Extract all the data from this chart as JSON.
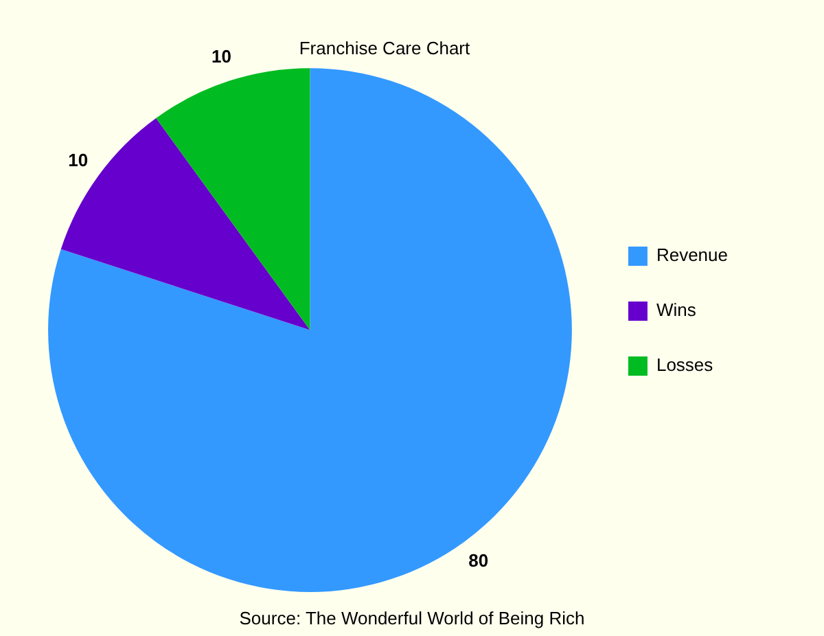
{
  "chart_data": {
    "type": "pie",
    "title": "Franchise Care Chart",
    "categories": [
      "Revenue",
      "Wins",
      "Losses"
    ],
    "values": [
      80,
      10,
      10
    ],
    "colors": [
      "#3399ff",
      "#6600cc",
      "#00bb22"
    ],
    "data_labels": true,
    "legend": "right",
    "annotations": [
      "Source: The Wonderful World of Being Rich"
    ]
  }
}
